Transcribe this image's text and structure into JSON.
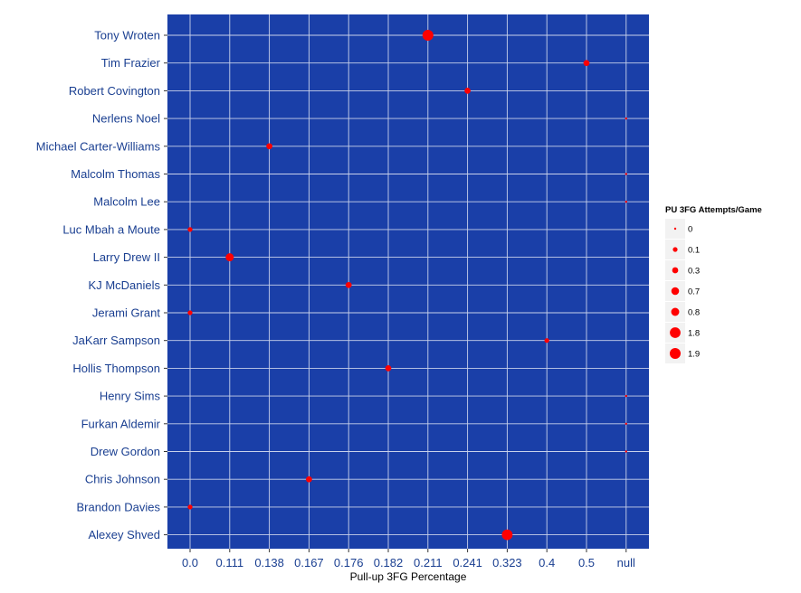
{
  "chart_data": {
    "type": "scatter",
    "title": "",
    "xlabel": "Pull-up 3FG Percentage",
    "ylabel": "",
    "x_categories": [
      "0.0",
      "0.111",
      "0.138",
      "0.167",
      "0.176",
      "0.182",
      "0.211",
      "0.241",
      "0.323",
      "0.4",
      "0.5",
      "null"
    ],
    "y_categories": [
      "Tony Wroten",
      "Tim Frazier",
      "Robert Covington",
      "Nerlens Noel",
      "Michael Carter-Williams",
      "Malcolm Thomas",
      "Malcolm Lee",
      "Luc Mbah a Moute",
      "Larry Drew II",
      "KJ McDaniels",
      "Jerami Grant",
      "JaKarr Sampson",
      "Hollis Thompson",
      "Henry Sims",
      "Furkan Aldemir",
      "Drew Gordon",
      "Chris Johnson",
      "Brandon Davies",
      "Alexey Shved"
    ],
    "points": [
      {
        "player": "Tony Wroten",
        "x": "0.211",
        "size": 1.9
      },
      {
        "player": "Tim Frazier",
        "x": "0.5",
        "size": 0.3
      },
      {
        "player": "Robert Covington",
        "x": "0.241",
        "size": 0.3
      },
      {
        "player": "Nerlens Noel",
        "x": "null",
        "size": 0
      },
      {
        "player": "Michael Carter-Williams",
        "x": "0.138",
        "size": 0.3
      },
      {
        "player": "Malcolm Thomas",
        "x": "null",
        "size": 0
      },
      {
        "player": "Malcolm Lee",
        "x": "null",
        "size": 0
      },
      {
        "player": "Luc Mbah a Moute",
        "x": "0.0",
        "size": 0.1
      },
      {
        "player": "Larry Drew II",
        "x": "0.111",
        "size": 0.8
      },
      {
        "player": "KJ McDaniels",
        "x": "0.176",
        "size": 0.3
      },
      {
        "player": "Jerami Grant",
        "x": "0.0",
        "size": 0.1
      },
      {
        "player": "JaKarr Sampson",
        "x": "0.4",
        "size": 0.1
      },
      {
        "player": "Hollis Thompson",
        "x": "0.182",
        "size": 0.3
      },
      {
        "player": "Henry Sims",
        "x": "null",
        "size": 0
      },
      {
        "player": "Furkan Aldemir",
        "x": "null",
        "size": 0
      },
      {
        "player": "Drew Gordon",
        "x": "null",
        "size": 0
      },
      {
        "player": "Chris Johnson",
        "x": "0.167",
        "size": 0.3
      },
      {
        "player": "Brandon Davies",
        "x": "0.0",
        "size": 0.1
      },
      {
        "player": "Alexey Shved",
        "x": "0.323",
        "size": 1.8
      }
    ],
    "legend": {
      "title": "PU 3FG Attempts/Game",
      "position": "right",
      "entries": [
        {
          "label": "0",
          "size": 0
        },
        {
          "label": "0.1",
          "size": 0.1
        },
        {
          "label": "0.3",
          "size": 0.3
        },
        {
          "label": "0.7",
          "size": 0.7
        },
        {
          "label": "0.8",
          "size": 0.8
        },
        {
          "label": "1.8",
          "size": 1.8
        },
        {
          "label": "1.9",
          "size": 1.9
        }
      ]
    },
    "grid": true,
    "colors": {
      "panel": "#1a3fa8",
      "grid": "#c8d1ea",
      "point": "#ff0000",
      "tick_text": "#1a3f91",
      "legend_key_bg": "#f2f2f2"
    }
  }
}
